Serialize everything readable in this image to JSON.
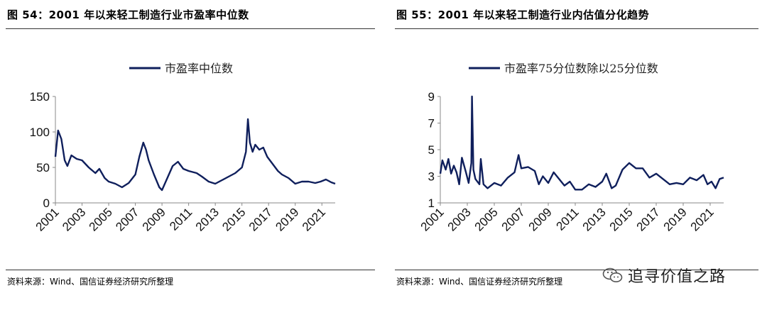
{
  "left": {
    "title": "图 54：2001 年以来轻工制造行业市盈率中位数",
    "source": "资料来源：Wind、国信证券经济研究所整理"
  },
  "right": {
    "title": "图 55：2001 年以来轻工制造行业内估值分化趋势",
    "source": "资料来源：Wind、国信证券经济研究所整理"
  },
  "watermark": {
    "text": "追寻价值之路",
    "icon": "wechat-icon"
  },
  "line_color": "#0f1f5c",
  "chart_data": [
    {
      "type": "line",
      "title": "",
      "legend": "top-center",
      "series": [
        {
          "name": "市盈率中位数",
          "x": [
            2001.0,
            2001.2,
            2001.45,
            2001.7,
            2001.9,
            2002.2,
            2002.6,
            2003.0,
            2003.5,
            2004.0,
            2004.3,
            2004.7,
            2005.0,
            2005.5,
            2006.0,
            2006.5,
            2007.0,
            2007.3,
            2007.6,
            2007.8,
            2008.0,
            2008.4,
            2008.8,
            2009.0,
            2009.4,
            2009.8,
            2010.2,
            2010.6,
            2011.0,
            2011.6,
            2012.0,
            2012.5,
            2013.0,
            2013.5,
            2014.0,
            2014.5,
            2015.0,
            2015.3,
            2015.45,
            2015.6,
            2015.8,
            2016.0,
            2016.3,
            2016.6,
            2016.9,
            2017.3,
            2017.7,
            2018.0,
            2018.5,
            2019.0,
            2019.5,
            2020.0,
            2020.5,
            2020.9,
            2021.3,
            2021.7,
            2022.0
          ],
          "values": [
            65,
            102,
            90,
            60,
            52,
            67,
            62,
            60,
            50,
            42,
            48,
            35,
            30,
            27,
            22,
            28,
            40,
            65,
            85,
            75,
            60,
            40,
            22,
            18,
            35,
            52,
            58,
            48,
            45,
            42,
            37,
            30,
            27,
            32,
            37,
            42,
            50,
            72,
            118,
            85,
            72,
            82,
            75,
            78,
            65,
            55,
            45,
            40,
            35,
            27,
            30,
            30,
            28,
            30,
            33,
            29,
            27
          ]
        }
      ],
      "xlim": [
        2001,
        2022
      ],
      "ylim": [
        0,
        150
      ],
      "yticks": [
        "0",
        "50",
        "100",
        "150"
      ],
      "xticks": [
        "2001",
        "2003",
        "2005",
        "2007",
        "2009",
        "2011",
        "2013",
        "2015",
        "2017",
        "2019",
        "2021"
      ],
      "grid": false
    },
    {
      "type": "line",
      "title": "",
      "legend": "top-center",
      "series": [
        {
          "name": "市盈率75分位数除以25分位数",
          "x": [
            2001.0,
            2001.15,
            2001.4,
            2001.6,
            2001.8,
            2002.0,
            2002.2,
            2002.4,
            2002.6,
            2002.9,
            2003.1,
            2003.3,
            2003.35,
            2003.45,
            2003.6,
            2003.9,
            2004.0,
            2004.2,
            2004.5,
            2005.0,
            2005.5,
            2006.0,
            2006.5,
            2006.8,
            2007.0,
            2007.5,
            2008.0,
            2008.3,
            2008.6,
            2009.0,
            2009.4,
            2009.8,
            2010.2,
            2010.6,
            2011.0,
            2011.5,
            2012.0,
            2012.5,
            2013.0,
            2013.3,
            2013.7,
            2014.0,
            2014.5,
            2015.0,
            2015.5,
            2016.0,
            2016.5,
            2017.0,
            2017.5,
            2018.0,
            2018.5,
            2019.0,
            2019.5,
            2020.0,
            2020.5,
            2020.8,
            2021.1,
            2021.4,
            2021.7,
            2022.0
          ],
          "values": [
            3.2,
            4.2,
            3.5,
            4.3,
            3.2,
            3.8,
            3.3,
            2.4,
            4.4,
            3.3,
            2.5,
            4.0,
            9.0,
            3.5,
            2.8,
            2.4,
            4.3,
            2.4,
            2.1,
            2.5,
            2.3,
            2.9,
            3.3,
            4.6,
            3.6,
            3.7,
            3.4,
            2.4,
            3.0,
            2.5,
            3.3,
            2.8,
            2.3,
            2.6,
            2.0,
            2.0,
            2.4,
            2.2,
            2.6,
            3.2,
            2.1,
            2.3,
            3.5,
            4.0,
            3.6,
            3.6,
            2.9,
            3.2,
            2.8,
            2.4,
            2.5,
            2.4,
            2.9,
            2.7,
            3.1,
            2.4,
            2.6,
            2.1,
            2.8,
            2.9
          ]
        }
      ],
      "xlim": [
        2001,
        2022
      ],
      "ylim": [
        1,
        9
      ],
      "yticks": [
        "1",
        "3",
        "5",
        "7",
        "9"
      ],
      "xticks": [
        "2001",
        "2003",
        "2005",
        "2007",
        "2009",
        "2011",
        "2013",
        "2015",
        "2017",
        "2019",
        "2021"
      ],
      "grid": false
    }
  ]
}
